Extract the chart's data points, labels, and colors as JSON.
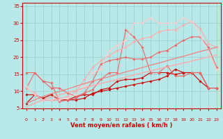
{
  "title": "",
  "xlabel": "Vent moyen/en rafales ( km/h )",
  "ylabel": "",
  "xlim": [
    -0.5,
    23.5
  ],
  "ylim": [
    5,
    36
  ],
  "yticks": [
    5,
    10,
    15,
    20,
    25,
    30,
    35
  ],
  "xticks": [
    0,
    1,
    2,
    3,
    4,
    5,
    6,
    7,
    8,
    9,
    10,
    11,
    12,
    13,
    14,
    15,
    16,
    17,
    18,
    19,
    20,
    21,
    22,
    23
  ],
  "bg_color": "#b8e8e8",
  "grid_color": "#99cccc",
  "axis_color": "#cc0000",
  "text_color": "#cc0000",
  "lines": [
    {
      "x": [
        0,
        1,
        2,
        3,
        4,
        5,
        6,
        7,
        8,
        9,
        10,
        11,
        12,
        13,
        14,
        15,
        16,
        17,
        18,
        19,
        20,
        21,
        22,
        23
      ],
      "y": [
        6.5,
        9.0,
        8.0,
        9.0,
        7.5,
        7.5,
        7.5,
        8.0,
        9.5,
        10.0,
        10.5,
        11.0,
        11.5,
        12.0,
        12.5,
        13.0,
        13.5,
        14.5,
        16.5,
        15.5,
        15.5,
        13.0,
        11.0,
        11.0
      ],
      "color": "#cc0000",
      "lw": 0.8,
      "marker": "D",
      "ms": 1.8
    },
    {
      "x": [
        0,
        1,
        2,
        3,
        4,
        5,
        6,
        7,
        8,
        9,
        10,
        11,
        12,
        13,
        14,
        15,
        16,
        17,
        18,
        19,
        20,
        21,
        22,
        23
      ],
      "y": [
        9.0,
        9.0,
        7.5,
        7.5,
        7.5,
        7.5,
        8.5,
        9.0,
        9.0,
        10.5,
        11.0,
        13.0,
        13.5,
        13.5,
        14.0,
        15.5,
        15.5,
        15.5,
        15.0,
        15.5,
        15.5,
        15.5,
        11.0,
        11.0
      ],
      "color": "#cc0000",
      "lw": 0.8,
      "marker": "D",
      "ms": 1.8
    },
    {
      "x": [
        0,
        1,
        2,
        3,
        4,
        5,
        6,
        7,
        8,
        9,
        10,
        11,
        12,
        13,
        14,
        15,
        16,
        17,
        18,
        19,
        20,
        21,
        22,
        23
      ],
      "y": [
        11.0,
        15.5,
        13.0,
        12.5,
        7.0,
        7.5,
        8.0,
        9.5,
        10.5,
        13.5,
        15.5,
        15.5,
        28.0,
        26.0,
        23.0,
        15.5,
        15.5,
        17.5,
        14.5,
        14.5,
        15.5,
        15.5,
        11.0,
        11.0
      ],
      "color": "#ee6666",
      "lw": 0.8,
      "marker": "D",
      "ms": 1.8
    },
    {
      "x": [
        0,
        1,
        2,
        3,
        4,
        5,
        6,
        7,
        8,
        9,
        10,
        11,
        12,
        13,
        14,
        15,
        16,
        17,
        18,
        19,
        20,
        21,
        22,
        23
      ],
      "y": [
        15.5,
        15.5,
        13.0,
        11.0,
        11.0,
        9.5,
        8.5,
        9.5,
        13.0,
        18.0,
        19.0,
        19.5,
        20.0,
        19.5,
        19.5,
        20.0,
        21.5,
        22.0,
        23.5,
        25.0,
        26.0,
        26.0,
        23.0,
        17.0
      ],
      "color": "#ee6666",
      "lw": 0.8,
      "marker": "D",
      "ms": 1.8
    },
    {
      "x": [
        0,
        1,
        2,
        3,
        4,
        5,
        6,
        7,
        8,
        9,
        10,
        11,
        12,
        13,
        14,
        15,
        16,
        17,
        18,
        19,
        20,
        21,
        22,
        23
      ],
      "y": [
        11.0,
        9.5,
        7.5,
        7.5,
        8.0,
        8.5,
        10.0,
        13.5,
        17.0,
        19.0,
        20.5,
        22.0,
        23.0,
        24.5,
        25.5,
        26.0,
        27.5,
        28.0,
        28.0,
        29.5,
        30.5,
        28.5,
        24.0,
        23.0
      ],
      "color": "#ffaaaa",
      "lw": 0.8,
      "marker": "D",
      "ms": 1.8
    },
    {
      "x": [
        0,
        1,
        2,
        3,
        4,
        5,
        6,
        7,
        8,
        9,
        10,
        11,
        12,
        13,
        14,
        15,
        16,
        17,
        18,
        19,
        20,
        21,
        22,
        23
      ],
      "y": [
        11.5,
        9.0,
        7.5,
        7.5,
        7.5,
        8.0,
        9.0,
        11.5,
        15.5,
        16.5,
        22.0,
        23.5,
        25.0,
        30.0,
        30.0,
        31.5,
        30.0,
        30.0,
        30.0,
        31.5,
        30.5,
        26.5,
        21.5,
        16.5
      ],
      "color": "#ffcccc",
      "lw": 0.8,
      "marker": "D",
      "ms": 1.8
    },
    {
      "x": [
        0,
        1,
        2,
        3,
        4,
        5,
        6,
        7,
        8,
        9,
        10,
        11,
        12,
        13,
        14,
        15,
        16,
        17,
        18,
        19,
        20,
        21,
        22,
        23
      ],
      "y": [
        6.5,
        7.5,
        8.5,
        9.3,
        10.0,
        10.7,
        11.5,
        12.3,
        13.0,
        13.7,
        14.3,
        15.0,
        15.7,
        16.3,
        17.0,
        17.7,
        18.3,
        19.0,
        19.7,
        20.3,
        21.0,
        21.7,
        22.3,
        23.0
      ],
      "color": "#ee8888",
      "lw": 1.0,
      "marker": null,
      "ms": 0
    },
    {
      "x": [
        0,
        1,
        2,
        3,
        4,
        5,
        6,
        7,
        8,
        9,
        10,
        11,
        12,
        13,
        14,
        15,
        16,
        17,
        18,
        19,
        20,
        21,
        22,
        23
      ],
      "y": [
        5.5,
        6.5,
        7.5,
        8.3,
        9.0,
        9.7,
        10.3,
        11.0,
        11.7,
        12.3,
        12.9,
        13.5,
        14.2,
        14.8,
        15.4,
        16.0,
        16.6,
        17.2,
        17.8,
        18.3,
        18.9,
        19.5,
        20.1,
        20.7
      ],
      "color": "#ffaaaa",
      "lw": 1.0,
      "marker": null,
      "ms": 0
    }
  ],
  "wind_arrows_color": "#cc3333",
  "wind_arrow_angles": [
    225,
    225,
    225,
    225,
    225,
    225,
    225,
    225,
    225,
    225,
    225,
    225,
    180,
    180,
    180,
    225,
    225,
    225,
    225,
    225,
    225,
    225,
    270,
    270
  ]
}
